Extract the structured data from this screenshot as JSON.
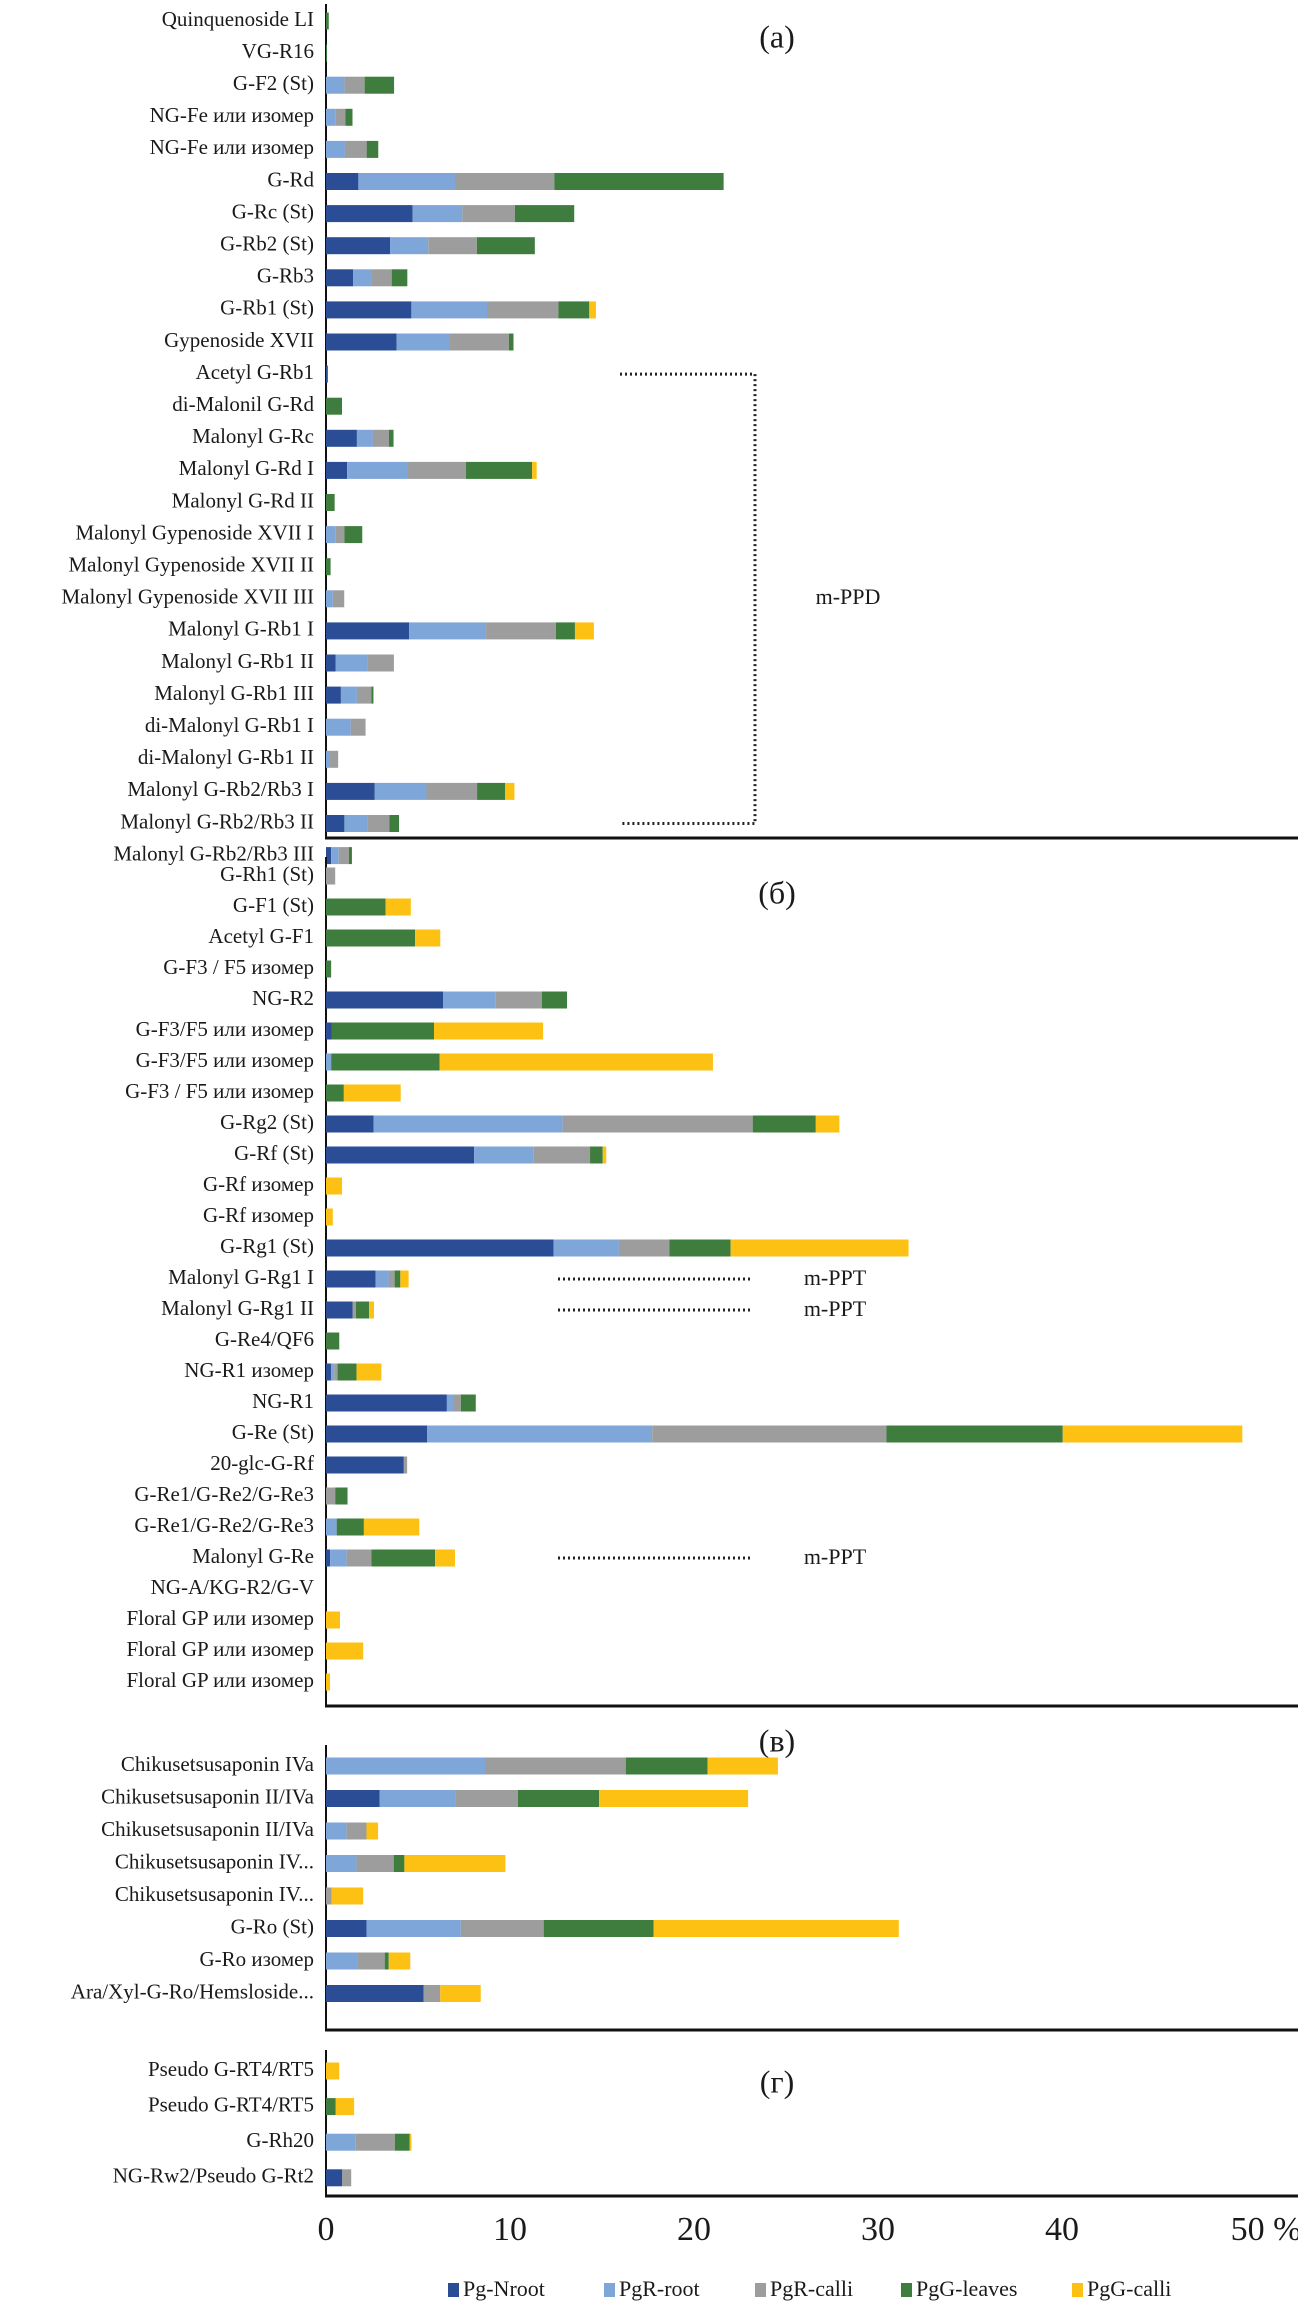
{
  "chart_data": {
    "type": "bar",
    "orientation": "horizontal",
    "stacked": true,
    "xlabel": "%",
    "xlim": [
      0,
      50
    ],
    "xticks": [
      "0",
      "10",
      "20",
      "30",
      "40",
      "50 %"
    ],
    "grid": false,
    "legend_position": "bottom",
    "series": [
      {
        "name": "Pg-Nroot",
        "color": "#2a4d96"
      },
      {
        "name": "PgR-root",
        "color": "#7fa6d8"
      },
      {
        "name": "PgR-calli",
        "color": "#9c9d9c"
      },
      {
        "name": "PgG-leaves",
        "color": "#3f7d3e"
      },
      {
        "name": "PgG-calli",
        "color": "#fdc113"
      }
    ],
    "panels": [
      {
        "label": "(a)",
        "rows": [
          {
            "name": "Quinquenoside LI",
            "values": [
              0,
              0,
              0,
              0.15,
              0
            ]
          },
          {
            "name": "VG-R16",
            "values": [
              0,
              0,
              0,
              0.05,
              0
            ]
          },
          {
            "name": "G-F2 (St)",
            "values": [
              0,
              1.0,
              1.1,
              1.6,
              0
            ]
          },
          {
            "name": "NG-Fe или изомер",
            "values": [
              0,
              0.5,
              0.56,
              0.38,
              0
            ]
          },
          {
            "name": "NG-Fe или изомер",
            "values": [
              0,
              1.03,
              1.18,
              0.63,
              0
            ]
          },
          {
            "name": "G-Rd",
            "values": [
              1.76,
              5.25,
              5.4,
              9.2,
              0
            ]
          },
          {
            "name": "G-Rc (St)",
            "values": [
              4.71,
              2.7,
              2.86,
              3.22,
              0
            ]
          },
          {
            "name": "G-Rb2 (St)",
            "values": [
              3.48,
              2.08,
              2.64,
              3.15,
              0
            ]
          },
          {
            "name": "G-Rb3",
            "values": [
              1.47,
              0.98,
              1.12,
              0.85,
              0
            ]
          },
          {
            "name": "G-Rb1 (St)",
            "values": [
              4.64,
              4.11,
              3.88,
              1.68,
              0.36
            ]
          },
          {
            "name": "Gypenoside XVII",
            "values": [
              3.84,
              2.9,
              3.2,
              0.25,
              0
            ]
          },
          {
            "name": "Acetyl G-Rb1",
            "values": [
              0.1,
              0,
              0,
              0,
              0
            ]
          },
          {
            "name": "di-Malonil G-Rd",
            "values": [
              0,
              0,
              0,
              0.87,
              0
            ]
          },
          {
            "name": "Malonyl G-Rc",
            "values": [
              1.68,
              0.87,
              0.87,
              0.25,
              0
            ]
          },
          {
            "name": "Malonyl G-Rd I",
            "values": [
              1.15,
              3.28,
              3.18,
              3.59,
              0.25
            ]
          },
          {
            "name": "Malonyl G-Rd II",
            "values": [
              0,
              0,
              0,
              0.47,
              0
            ]
          },
          {
            "name": "Malonyl Gypenoside XVII I",
            "values": [
              0,
              0.53,
              0.47,
              0.97,
              0
            ]
          },
          {
            "name": "Malonyl Gypenoside XVII II",
            "values": [
              0,
              0,
              0,
              0.25,
              0
            ]
          },
          {
            "name": "Malonyl Gypenoside XVII III",
            "values": [
              0,
              0.37,
              0.62,
              0,
              0
            ]
          },
          {
            "name": "Malonyl G-Rb1 I",
            "values": [
              4.52,
              4.18,
              3.8,
              1.03,
              1.03
            ]
          },
          {
            "name": "Malonyl G-Rb1 II",
            "values": [
              0.53,
              1.72,
              1.44,
              0,
              0
            ]
          },
          {
            "name": "Malonyl G-Rb1 III",
            "values": [
              0.81,
              0.87,
              0.78,
              0.12,
              0
            ]
          },
          {
            "name": "di-Malonyl G-Rb1 I",
            "values": [
              0,
              1.34,
              0.81,
              0,
              0
            ]
          },
          {
            "name": "di-Malonyl G-Rb1 II",
            "values": [
              0,
              0.22,
              0.44,
              0,
              0
            ]
          },
          {
            "name": "Malonyl G-Rb2/Rb3 I",
            "values": [
              2.65,
              2.81,
              2.75,
              1.53,
              0.5
            ]
          },
          {
            "name": "Malonyl G-Rb2/Rb3 II",
            "values": [
              1.0,
              1.25,
              1.19,
              0.53,
              0
            ]
          },
          {
            "name": "Malonyl G-Rb2/Rb3 III",
            "values": [
              0.28,
              0.41,
              0.56,
              0.16,
              0
            ]
          }
        ],
        "annotations": [
          {
            "text": "m-PPD",
            "type": "bracket",
            "from_row": "Acetyl G-Rb1",
            "to_row": "Malonyl G-Rb2/Rb3 II"
          }
        ]
      },
      {
        "label": "(б)",
        "rows": [
          {
            "name": "G-Rh1 (St)",
            "values": [
              0,
              0,
              0.5,
              0,
              0
            ]
          },
          {
            "name": "G-F1 (St)",
            "values": [
              0,
              0,
              0,
              3.24,
              1.37
            ]
          },
          {
            "name": "Acetyl G-F1",
            "values": [
              0,
              0,
              0,
              4.84,
              1.37
            ]
          },
          {
            "name": "G-F3 / F5 изомер",
            "values": [
              0,
              0,
              0,
              0.28,
              0
            ]
          },
          {
            "name": "NG-R2",
            "values": [
              6.36,
              2.87,
              2.5,
              1.37,
              0
            ]
          },
          {
            "name": "G-F3/F5 или изомер",
            "values": [
              0.3,
              0,
              0,
              5.57,
              5.93
            ]
          },
          {
            "name": "G-F3/F5 или изомер",
            "values": [
              0,
              0.28,
              0,
              5.9,
              14.85
            ]
          },
          {
            "name": "G-F3 / F5 или изомер",
            "values": [
              0,
              0,
              0,
              0.97,
              3.09
            ]
          },
          {
            "name": "G-Rg2 (St)",
            "values": [
              2.59,
              10.27,
              10.33,
              3.43,
              1.28
            ]
          },
          {
            "name": "G-Rf (St)",
            "values": [
              8.05,
              3.24,
              3.06,
              0.69,
              0.19
            ]
          },
          {
            "name": "G-Rf изомер",
            "values": [
              0,
              0,
              0,
              0,
              0.87
            ]
          },
          {
            "name": "G-Rf изомер",
            "values": [
              0,
              0,
              0,
              0,
              0.37
            ]
          },
          {
            "name": "G-Rg1 (St)",
            "values": [
              12.37,
              3.55,
              2.74,
              3.33,
              9.67
            ]
          },
          {
            "name": "Malonyl G-Rg1 I",
            "values": [
              2.7,
              0.72,
              0.31,
              0.31,
              0.45
            ]
          },
          {
            "name": "Malonyl G-Rg1 II",
            "values": [
              1.44,
              0,
              0.18,
              0.72,
              0.27
            ]
          },
          {
            "name": "G-Re4/QF6",
            "values": [
              0,
              0,
              0,
              0.72,
              0
            ]
          },
          {
            "name": "NG-R1 изомер",
            "values": [
              0.27,
              0.18,
              0.18,
              1.03,
              1.35
            ]
          },
          {
            "name": "NG-R1",
            "values": [
              6.57,
              0.36,
              0.4,
              0.81,
              0
            ]
          },
          {
            "name": "G-Re (St)",
            "values": [
              5.49,
              12.24,
              12.73,
              9.58,
              9.76
            ]
          },
          {
            "name": "20-glc-G-Rf",
            "values": [
              4.23,
              0,
              0.18,
              0,
              0
            ]
          },
          {
            "name": "G-Re1/G-Re2/G-Re3",
            "values": [
              0,
              0,
              0.5,
              0.67,
              0
            ]
          },
          {
            "name": "G-Re1/G-Re2/G-Re3",
            "values": [
              0,
              0.58,
              0,
              1.48,
              3.01
            ]
          },
          {
            "name": "Malonyl G-Re",
            "values": [
              0.22,
              0.9,
              1.35,
              3.46,
              1.08
            ]
          },
          {
            "name": "NG-A/KG-R2/G-V",
            "values": [
              0,
              0,
              0,
              0,
              0
            ]
          },
          {
            "name": "Floral GP или изомер",
            "values": [
              0,
              0,
              0,
              0,
              0.76
            ]
          },
          {
            "name": "Floral GP или изомер",
            "values": [
              0,
              0,
              0,
              0,
              2.02
            ]
          },
          {
            "name": "Floral GP или изомер",
            "values": [
              0,
              0,
              0,
              0,
              0.22
            ]
          }
        ],
        "annotations": [
          {
            "text": "m-PPT",
            "type": "line",
            "row": "Malonyl G-Rg1 I"
          },
          {
            "text": "m-PPT",
            "type": "line",
            "row": "Malonyl G-Rg1 II"
          },
          {
            "text": "m-PPT",
            "type": "line",
            "row": "Malonyl G-Re"
          }
        ]
      },
      {
        "label": "(в)",
        "rows": [
          {
            "name": "Chikusetsusaponin IVa",
            "values": [
              0,
              8.64,
              7.65,
              4.45,
              3.82
            ]
          },
          {
            "name": "Chikusetsusaponin II/IVa",
            "values": [
              2.92,
              4.14,
              3.37,
              4.41,
              8.1
            ]
          },
          {
            "name": "Chikusetsusaponin II/IVa",
            "values": [
              0,
              1.12,
              1.08,
              0,
              0.63
            ]
          },
          {
            "name": "Chikusetsusaponin IV...",
            "values": [
              0,
              1.66,
              2.02,
              0.58,
              5.49
            ]
          },
          {
            "name": "Chikusetsusaponin IV...",
            "values": [
              0,
              0,
              0.31,
              0,
              1.71
            ]
          },
          {
            "name": "G-Ro (St)",
            "values": [
              2.2,
              5.13,
              4.5,
              5.98,
              13.32
            ]
          },
          {
            "name": "G-Ro изомер",
            "values": [
              0,
              1.71,
              1.48,
              0.22,
              1.17
            ]
          },
          {
            "name": "Ara/Xyl-G-Ro/Hemsloside...",
            "values": [
              5.31,
              0,
              0.9,
              0,
              2.2
            ]
          }
        ],
        "annotations": []
      },
      {
        "label": "(г)",
        "rows": [
          {
            "name": "Pseudo G-RT4/RT5",
            "values": [
              0,
              0,
              0,
              0,
              0.72
            ]
          },
          {
            "name": "Pseudo G-RT4/RT5",
            "values": [
              0,
              0,
              0,
              0.53,
              1.0
            ]
          },
          {
            "name": "G-Rh20",
            "values": [
              0,
              1.62,
              2.12,
              0.81,
              0.09
            ]
          },
          {
            "name": "NG-Rw2/Pseudo G-Rt2",
            "values": [
              0.87,
              0,
              0.5,
              0,
              0
            ]
          }
        ],
        "annotations": []
      }
    ]
  }
}
